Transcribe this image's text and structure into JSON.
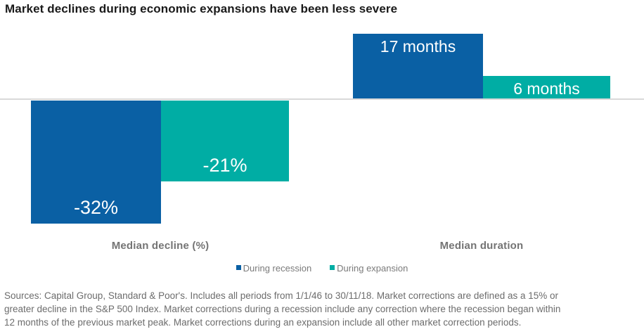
{
  "title": "Market declines during economic expansions have been less severe",
  "chart_data": {
    "type": "bar",
    "orientation": "vertical",
    "baseline_value": 0,
    "groups": [
      {
        "name": "Median decline (%)",
        "unit": "%",
        "series": [
          {
            "name": "During recession",
            "value": -32,
            "label": "-32%"
          },
          {
            "name": "During expansion",
            "value": -21,
            "label": "-21%"
          }
        ]
      },
      {
        "name": "Median duration",
        "unit": "months",
        "series": [
          {
            "name": "During recession",
            "value": 17,
            "label": "17 months"
          },
          {
            "name": "During expansion",
            "value": 6,
            "label": "6 months"
          }
        ]
      }
    ],
    "legend": [
      "During recession",
      "During expansion"
    ],
    "legend_position": "bottom-center",
    "colors": {
      "recession": "#0a60a4",
      "expansion": "#00ada4"
    },
    "grid": false,
    "axis_line_color": "#d9d9d9"
  },
  "footer": {
    "lines": [
      "Sources: Capital Group, Standard & Poor's. Includes all periods from 1/1/46 to 30/11/18. Market corrections are defined as a 15% or",
      "greater decline in the S&P 500 Index. Market corrections during a recession include any correction where the recession began within",
      "12 months of the previous market peak. Market corrections during an expansion include all other market correction periods."
    ]
  }
}
